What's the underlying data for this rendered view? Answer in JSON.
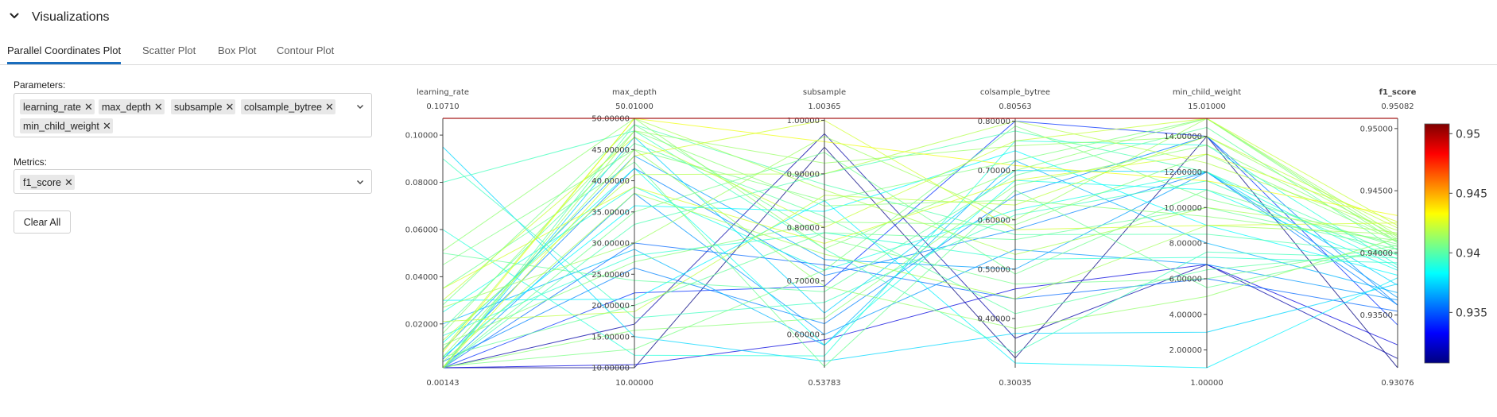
{
  "section": {
    "title": "Visualizations",
    "icon": "chevron-down-icon"
  },
  "tabs": [
    {
      "label": "Parallel Coordinates Plot",
      "active": true
    },
    {
      "label": "Scatter Plot",
      "active": false
    },
    {
      "label": "Box Plot",
      "active": false
    },
    {
      "label": "Contour Plot",
      "active": false
    }
  ],
  "parameters": {
    "label": "Parameters:",
    "selected": [
      "learning_rate",
      "max_depth",
      "subsample",
      "colsample_bytree",
      "min_child_weight"
    ]
  },
  "metrics": {
    "label": "Metrics:",
    "selected": [
      "f1_score"
    ]
  },
  "clear_button": "Clear All",
  "colors": {
    "accent": "#1a6dbd",
    "metric_label": "#2ca02c"
  },
  "chart_data": {
    "type": "parallel_coordinates",
    "colorscale": "Jet",
    "color_by": "f1_score",
    "colorbar": {
      "range": [
        0.93076,
        0.95082
      ],
      "ticks": [
        0.935,
        0.94,
        0.945,
        0.95
      ],
      "tick_labels": [
        "0.935",
        "0.94",
        "0.945",
        "0.95"
      ]
    },
    "dimensions": [
      {
        "name": "learning_rate",
        "top": "0.10710",
        "bottom": "0.00143",
        "range": [
          0.00143,
          0.1071
        ],
        "ticks": [
          0.02,
          0.04,
          0.06,
          0.08,
          0.1
        ],
        "tick_labels": [
          "0.02000",
          "0.04000",
          "0.06000",
          "0.08000",
          "0.10000"
        ]
      },
      {
        "name": "max_depth",
        "top": "50.01000",
        "bottom": "10.00000",
        "range": [
          10,
          50.01
        ],
        "ticks": [
          10,
          15,
          20,
          25,
          30,
          35,
          40,
          45,
          50
        ],
        "tick_labels": [
          "10.00000",
          "15.00000",
          "20.00000",
          "25.00000",
          "30.00000",
          "35.00000",
          "40.00000",
          "45.00000",
          "50.00000"
        ]
      },
      {
        "name": "subsample",
        "top": "1.00365",
        "bottom": "0.53783",
        "range": [
          0.53783,
          1.00365
        ],
        "ticks": [
          0.6,
          0.7,
          0.8,
          0.9,
          1.0
        ],
        "tick_labels": [
          "0.60000",
          "0.70000",
          "0.80000",
          "0.90000",
          "1.00000"
        ]
      },
      {
        "name": "colsample_bytree",
        "top": "0.80563",
        "bottom": "0.30035",
        "range": [
          0.30035,
          0.80563
        ],
        "ticks": [
          0.4,
          0.5,
          0.6,
          0.7,
          0.8
        ],
        "tick_labels": [
          "0.40000",
          "0.50000",
          "0.60000",
          "0.70000",
          "0.80000"
        ]
      },
      {
        "name": "min_child_weight",
        "top": "15.01000",
        "bottom": "1.00000",
        "range": [
          1,
          15.01
        ],
        "ticks": [
          2,
          4,
          6,
          8,
          10,
          12,
          14
        ],
        "tick_labels": [
          "2.00000",
          "4.00000",
          "6.00000",
          "8.00000",
          "10.00000",
          "12.00000",
          "14.00000"
        ]
      },
      {
        "name": "f1_score",
        "top": "0.95082",
        "bottom": "0.93076",
        "range": [
          0.93076,
          0.95082
        ],
        "ticks": [
          0.935,
          0.94,
          0.945,
          0.95
        ],
        "tick_labels": [
          "0.93500",
          "0.94000",
          "0.94500",
          "0.95000"
        ],
        "is_metric": true
      }
    ],
    "lines": [
      [
        0.1071,
        50.01,
        1.00365,
        0.80563,
        15.01,
        0.95082
      ],
      [
        0.00143,
        10,
        0.95,
        0.32,
        14,
        0.93076
      ],
      [
        0.00143,
        17,
        0.975,
        0.36,
        6.8,
        0.9315
      ],
      [
        0.00143,
        10.5,
        0.59,
        0.46,
        6.8,
        0.9326
      ],
      [
        0.00143,
        22,
        0.69,
        0.8,
        14,
        0.9342
      ],
      [
        0.00143,
        30,
        0.73,
        0.44,
        6.0,
        0.9353
      ],
      [
        0.004,
        26,
        0.62,
        0.65,
        14,
        0.9358
      ],
      [
        0.005,
        42,
        0.71,
        0.58,
        12,
        0.9358
      ],
      [
        0.00143,
        38,
        0.6,
        0.54,
        6.8,
        0.9362
      ],
      [
        0.009,
        44,
        0.74,
        0.5,
        12,
        0.9364
      ],
      [
        0.02,
        29,
        0.58,
        0.72,
        8.0,
        0.9368
      ],
      [
        0.095,
        15,
        0.55,
        0.37,
        3.0,
        0.9375
      ],
      [
        0.00143,
        47,
        0.64,
        0.7,
        12,
        0.9374
      ],
      [
        0.03,
        21,
        0.85,
        0.31,
        1.0,
        0.938
      ],
      [
        0.012,
        42,
        0.58,
        0.68,
        11,
        0.9386
      ],
      [
        0.025,
        39,
        0.72,
        0.62,
        12,
        0.9388
      ],
      [
        0.006,
        36,
        0.83,
        0.74,
        9.0,
        0.9382
      ],
      [
        0.06,
        12,
        0.56,
        0.76,
        13.5,
        0.939
      ],
      [
        0.015,
        28,
        0.79,
        0.52,
        7.2,
        0.9392
      ],
      [
        0.09,
        18,
        0.66,
        0.61,
        11.5,
        0.9395
      ],
      [
        0.08,
        48,
        0.76,
        0.33,
        7.5,
        0.9396
      ],
      [
        0.00143,
        33,
        0.9,
        0.78,
        12,
        0.9398
      ],
      [
        0.00143,
        49,
        0.88,
        0.57,
        8.5,
        0.9399
      ],
      [
        0.018,
        46,
        0.82,
        0.41,
        6.5,
        0.9401
      ],
      [
        0.05,
        24,
        0.68,
        0.69,
        14.5,
        0.9402
      ],
      [
        0.006,
        20,
        0.79,
        0.56,
        10,
        0.9403
      ],
      [
        0.035,
        43,
        0.54,
        0.66,
        5.5,
        0.9404
      ],
      [
        0.00143,
        35,
        0.94,
        0.49,
        11,
        0.9405
      ],
      [
        0.028,
        49,
        0.78,
        0.47,
        6.0,
        0.9406
      ],
      [
        0.002,
        13,
        0.72,
        0.79,
        10.5,
        0.9407
      ],
      [
        0.045,
        45,
        0.85,
        0.72,
        15,
        0.9408
      ],
      [
        0.011,
        27,
        0.81,
        0.59,
        13,
        0.9409
      ],
      [
        0.00143,
        16,
        0.63,
        0.67,
        13.5,
        0.941
      ],
      [
        0.016,
        48,
        0.84,
        0.64,
        9.5,
        0.941
      ],
      [
        0.051,
        50,
        0.76,
        0.7,
        15,
        0.9411
      ],
      [
        0.006,
        45,
        0.69,
        0.38,
        5.0,
        0.9412
      ],
      [
        0.00143,
        48,
        0.92,
        0.75,
        14,
        0.9413
      ],
      [
        0.027,
        30,
        0.97,
        0.6,
        15,
        0.9414
      ],
      [
        0.004,
        38,
        0.75,
        0.44,
        9.0,
        0.9415
      ],
      [
        0.009,
        50,
        0.87,
        0.53,
        10,
        0.9416
      ],
      [
        0.013,
        41,
        0.9,
        0.8,
        12.5,
        0.9418
      ],
      [
        0.021,
        19,
        0.86,
        0.63,
        14,
        0.942
      ],
      [
        0.03,
        47,
        0.8,
        0.76,
        15,
        0.9422
      ],
      [
        0.00143,
        44,
        1.0,
        0.58,
        9.0,
        0.9424
      ],
      [
        0.035,
        39,
        0.77,
        0.68,
        13,
        0.9425
      ],
      [
        0.008,
        50,
        0.96,
        0.71,
        11.5,
        0.943
      ]
    ]
  }
}
